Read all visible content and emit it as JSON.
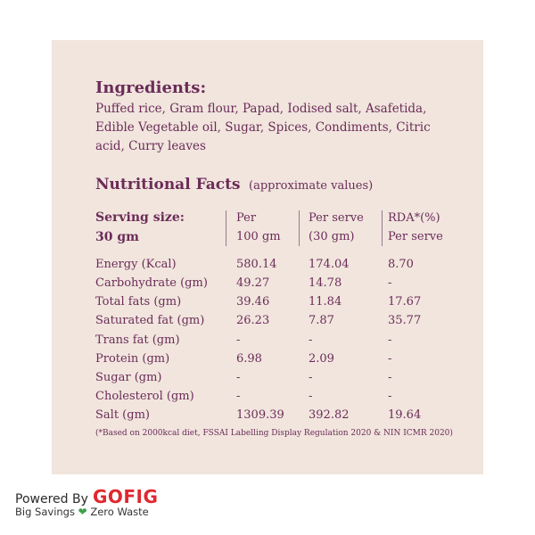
{
  "ingredients": {
    "heading": "Ingredients:",
    "line1": "Puffed rice, Gram flour, Papad, Iodised salt, Asafetida,",
    "line2": "Edible Vegetable oil, Sugar, Spices, Condiments, Citric",
    "line3": "acid, Curry leaves"
  },
  "nutrition": {
    "heading": "Nutritional Facts",
    "note": "(approximate values)",
    "serving_label_1": "Serving size:",
    "serving_label_2": "30 gm",
    "col_per_1": "Per",
    "col_per_2": "100 gm",
    "col_serve_1": "Per serve",
    "col_serve_2": "(30 gm)",
    "col_rda_1": "RDA*(%)",
    "col_rda_2": "Per serve",
    "rows": [
      {
        "name": "Energy (Kcal)",
        "per100": "580.14",
        "perserve": "174.04",
        "rda": "8.70"
      },
      {
        "name": "Carbohydrate (gm)",
        "per100": "49.27",
        "perserve": "14.78",
        "rda": "-"
      },
      {
        "name": "Total fats (gm)",
        "per100": "39.46",
        "perserve": "11.84",
        "rda": "17.67"
      },
      {
        "name": "Saturated fat (gm)",
        "per100": "26.23",
        "perserve": "7.87",
        "rda": "35.77"
      },
      {
        "name": "Trans fat (gm)",
        "per100": "-",
        "perserve": "-",
        "rda": "-"
      },
      {
        "name": "Protein (gm)",
        "per100": "6.98",
        "perserve": "2.09",
        "rda": "-"
      },
      {
        "name": "Sugar (gm)",
        "per100": "-",
        "perserve": "-",
        "rda": "-"
      },
      {
        "name": "Cholesterol (gm)",
        "per100": "-",
        "perserve": "-",
        "rda": "-"
      },
      {
        "name": "Salt (gm)",
        "per100": "1309.39",
        "perserve": "392.82",
        "rda": "19.64"
      }
    ],
    "footnote": "(*Based on 2000kcal diet, FSSAI Labelling Display Regulation 2020 & NIN ICMR 2020)"
  },
  "brand": {
    "powered_by": "Powered By",
    "name": "GOFIG",
    "tag_left": "Big Savings",
    "tag_right": "Zero Waste",
    "heart_icon": "heart-icon",
    "accent_red": "#e0282e",
    "accent_green": "#3ea04a"
  },
  "colors": {
    "panel_bg": "#f1e5de",
    "text": "#6b2c57"
  }
}
